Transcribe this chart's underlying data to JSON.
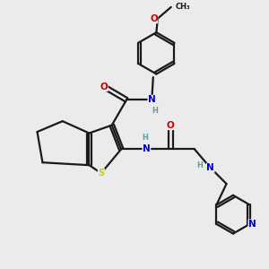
{
  "background_color": "#ebebeb",
  "bond_color": "#1a1a1a",
  "atom_colors": {
    "N_amide": "#0000cc",
    "N_pyr": "#0000cc",
    "O": "#cc0000",
    "S": "#cccc00",
    "H": "#5f9ea0",
    "C": "#1a1a1a"
  },
  "figsize": [
    3.0,
    3.0
  ],
  "dpi": 100,
  "xlim": [
    0,
    10
  ],
  "ylim": [
    0,
    10
  ]
}
